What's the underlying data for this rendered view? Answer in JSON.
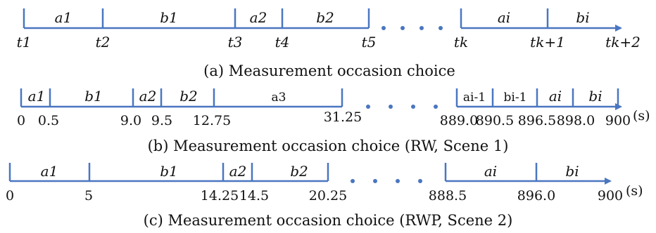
{
  "panel_a": {
    "segments": [
      "a1",
      "b1",
      "a2",
      "b2",
      "ai",
      "bi"
    ],
    "ticks": [
      "t1",
      "t2",
      "t3",
      "t4",
      "t5",
      "tk",
      "tk+1",
      "tk+2"
    ],
    "caption": "(a)   Measurement occasion choice"
  },
  "panel_b": {
    "segments": [
      "a1",
      "b1",
      "a2",
      "b2",
      "a3",
      "ai-1",
      "bi-1",
      "ai",
      "bi"
    ],
    "ticks": [
      "0",
      "0.5",
      "9.0",
      "9.5",
      "12.75",
      "31.25",
      "889.0",
      "890.5",
      "896.5",
      "898.0",
      "900"
    ],
    "unit": "(s)",
    "caption": "(b)   Measurement occasion choice (RW, Scene 1)"
  },
  "panel_c": {
    "segments": [
      "a1",
      "b1",
      "a2",
      "b2",
      "ai",
      "bi"
    ],
    "ticks": [
      "0",
      "5",
      "14.25",
      "14.5",
      "20.25",
      "888.5",
      "896.0",
      "900"
    ],
    "unit": "(s)",
    "caption": "(c)   Measurement occasion choice (RWP, Scene 2)"
  }
}
